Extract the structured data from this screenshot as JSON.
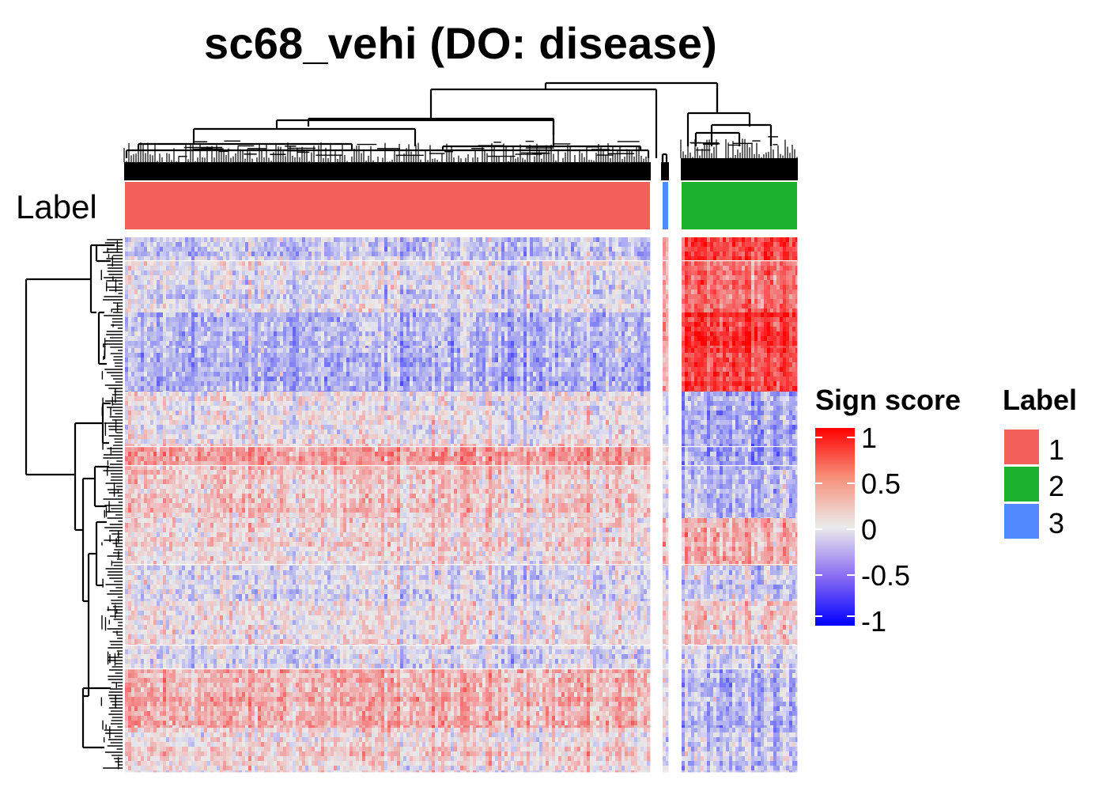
{
  "chart_data": {
    "type": "heatmap",
    "title": "sc68_vehi (DO: disease)",
    "row_annotation_label": "Label",
    "color_legend": {
      "title": "Sign score",
      "ticks": [
        "1",
        "0.5",
        "0",
        "-0.5",
        "-1"
      ],
      "values": [
        1,
        0.5,
        0,
        -0.5,
        -1
      ],
      "colors": {
        "high": "#ff0000",
        "mid": "#ebebeb",
        "low": "#0000ff"
      }
    },
    "label_legend": {
      "title": "Label",
      "entries": [
        {
          "label": "1",
          "color": "#f2605c"
        },
        {
          "label": "2",
          "color": "#1db22e"
        },
        {
          "label": "3",
          "color": "#5389ff"
        }
      ]
    },
    "column_clusters": [
      {
        "label": "1",
        "color": "#f2605c",
        "relative_width": 0.78
      },
      {
        "label": "3",
        "color": "#5389ff",
        "relative_width": 0.01
      },
      {
        "label": "2",
        "color": "#1db22e",
        "relative_width": 0.17
      }
    ]
  }
}
